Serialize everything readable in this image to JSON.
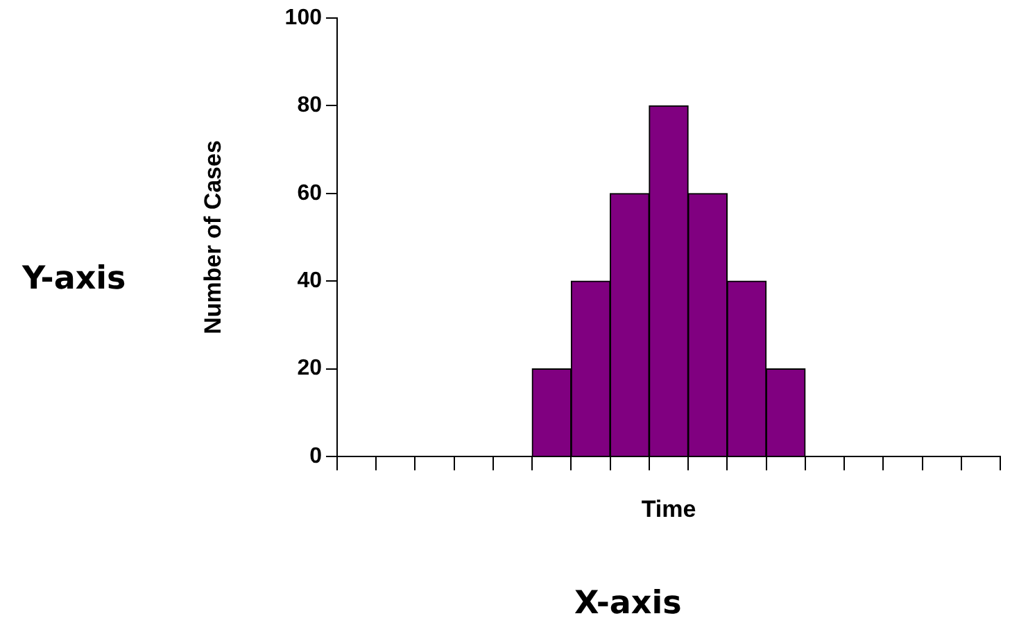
{
  "chart_data": {
    "type": "bar",
    "xlabel": "Time",
    "ylabel": "Number of Cases",
    "categories": [
      null,
      null,
      null,
      null,
      null,
      null,
      null,
      null,
      null,
      null,
      null,
      null,
      null,
      null,
      null,
      null,
      null
    ],
    "values": [
      0,
      0,
      0,
      0,
      0,
      20,
      40,
      60,
      80,
      60,
      40,
      20,
      0,
      0,
      0,
      0,
      0
    ],
    "color": "#800080",
    "ylim": [
      0,
      100
    ],
    "yticks": [
      0,
      20,
      40,
      60,
      80,
      100
    ],
    "annotations": [
      "Y-axis",
      "X-axis"
    ]
  }
}
